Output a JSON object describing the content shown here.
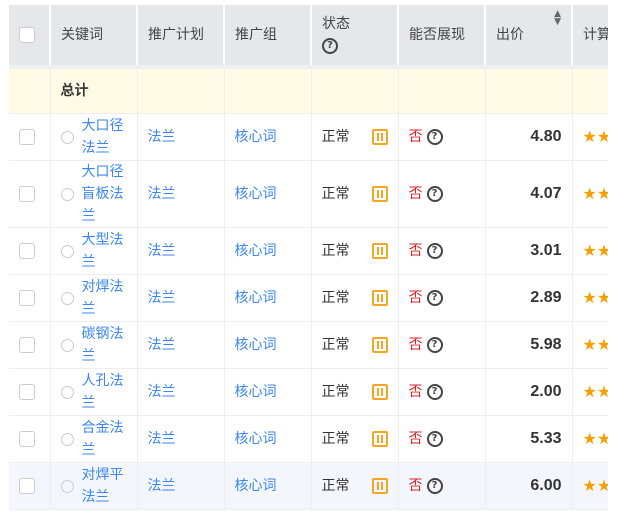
{
  "headers": {
    "keyword": "关键词",
    "plan": "推广计划",
    "group": "推广组",
    "status": "状态",
    "show": "能否展现",
    "price": "出价",
    "quality": "计算质量度"
  },
  "total_label": "总计",
  "rows": [
    {
      "keyword": "大口径法兰",
      "plan": "法兰",
      "group": "核心词",
      "status": "正常",
      "show": "否",
      "price": "4.80"
    },
    {
      "keyword": "大口径盲板法兰",
      "plan": "法兰",
      "group": "核心词",
      "status": "正常",
      "show": "否",
      "price": "4.07"
    },
    {
      "keyword": "大型法兰",
      "plan": "法兰",
      "group": "核心词",
      "status": "正常",
      "show": "否",
      "price": "3.01"
    },
    {
      "keyword": "对焊法兰",
      "plan": "法兰",
      "group": "核心词",
      "status": "正常",
      "show": "否",
      "price": "2.89"
    },
    {
      "keyword": "碳钢法兰",
      "plan": "法兰",
      "group": "核心词",
      "status": "正常",
      "show": "否",
      "price": "5.98"
    },
    {
      "keyword": "人孔法兰",
      "plan": "法兰",
      "group": "核心词",
      "status": "正常",
      "show": "否",
      "price": "2.00"
    },
    {
      "keyword": "合金法兰",
      "plan": "法兰",
      "group": "核心词",
      "status": "正常",
      "show": "否",
      "price": "5.33"
    },
    {
      "keyword": "对焊平法兰",
      "plan": "法兰",
      "group": "核心词",
      "status": "正常",
      "show": "否",
      "price": "6.00"
    }
  ],
  "colors": {
    "link": "#3b86f0",
    "negative": "#d9262a",
    "pause": "#f5a623",
    "star": "#f5a000",
    "total_bg": "#fefae6"
  }
}
